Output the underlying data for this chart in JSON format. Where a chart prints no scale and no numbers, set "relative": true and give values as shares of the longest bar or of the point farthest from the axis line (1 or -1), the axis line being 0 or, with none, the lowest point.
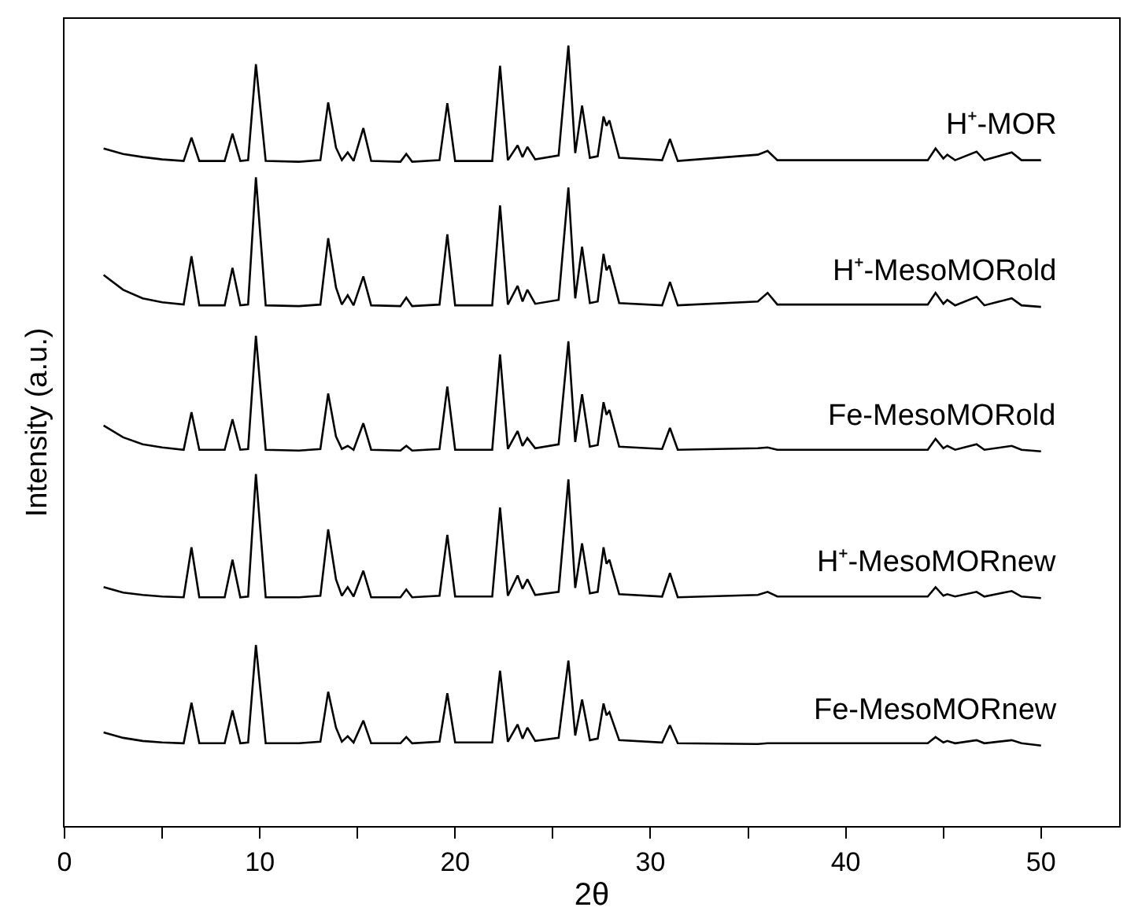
{
  "chart_data": {
    "type": "line",
    "relative": true,
    "xlabel": "2θ",
    "ylabel": "Intensity (a.u.)",
    "xlim": [
      0,
      54
    ],
    "xticks": [
      0,
      {
        "value": 5,
        "label": null
      },
      10,
      {
        "value": 15,
        "label": null
      },
      20,
      {
        "value": 25,
        "label": null
      },
      30,
      {
        "value": 35,
        "label": null
      },
      40,
      {
        "value": 45,
        "label": null
      },
      50
    ],
    "legend": false,
    "marker": "none",
    "line_style": "solid",
    "x": [
      2,
      3,
      4,
      5,
      6.1,
      6.5,
      6.9,
      8.2,
      8.6,
      9.0,
      9.4,
      9.8,
      10.3,
      12,
      13.1,
      13.5,
      13.9,
      14.2,
      14.5,
      14.8,
      15.3,
      15.7,
      17.2,
      17.5,
      17.8,
      19.2,
      19.6,
      20.0,
      21.9,
      22.3,
      22.7,
      23.2,
      23.45,
      23.7,
      24.1,
      25.3,
      25.8,
      26.15,
      26.5,
      26.9,
      27.3,
      27.6,
      27.75,
      27.9,
      28.4,
      30.6,
      31.0,
      31.4,
      35.5,
      36.0,
      36.5,
      44.2,
      44.6,
      45.0,
      45.2,
      45.6,
      46.7,
      47.1,
      48.5,
      49,
      50
    ],
    "series": [
      {
        "name": "H⁺-MOR",
        "color": "#000000",
        "values": [
          0.868,
          0.861,
          0.857,
          0.854,
          0.852,
          0.882,
          0.852,
          0.852,
          0.887,
          0.852,
          0.853,
          0.976,
          0.852,
          0.851,
          0.853,
          0.927,
          0.869,
          0.853,
          0.863,
          0.852,
          0.894,
          0.852,
          0.851,
          0.861,
          0.851,
          0.853,
          0.926,
          0.852,
          0.852,
          0.974,
          0.853,
          0.872,
          0.857,
          0.87,
          0.854,
          0.859,
          1.0,
          0.862,
          0.923,
          0.856,
          0.858,
          0.909,
          0.897,
          0.904,
          0.856,
          0.853,
          0.88,
          0.852,
          0.86,
          0.865,
          0.853,
          0.853,
          0.868,
          0.855,
          0.86,
          0.853,
          0.864,
          0.853,
          0.863,
          0.853,
          0.853
        ]
      },
      {
        "name": "H⁺-MesoMORold",
        "color": "#000000",
        "values": [
          0.706,
          0.687,
          0.676,
          0.671,
          0.668,
          0.73,
          0.667,
          0.667,
          0.715,
          0.667,
          0.668,
          0.831,
          0.667,
          0.666,
          0.668,
          0.753,
          0.69,
          0.668,
          0.68,
          0.667,
          0.704,
          0.667,
          0.666,
          0.677,
          0.666,
          0.668,
          0.758,
          0.667,
          0.667,
          0.795,
          0.668,
          0.692,
          0.672,
          0.687,
          0.669,
          0.674,
          0.818,
          0.676,
          0.742,
          0.67,
          0.672,
          0.733,
          0.712,
          0.718,
          0.67,
          0.667,
          0.697,
          0.667,
          0.672,
          0.683,
          0.668,
          0.668,
          0.683,
          0.669,
          0.674,
          0.667,
          0.678,
          0.667,
          0.676,
          0.667,
          0.665
        ]
      },
      {
        "name": "Fe-MesoMORold",
        "color": "#000000",
        "values": [
          0.513,
          0.498,
          0.489,
          0.485,
          0.482,
          0.53,
          0.482,
          0.482,
          0.521,
          0.482,
          0.483,
          0.628,
          0.482,
          0.481,
          0.483,
          0.554,
          0.499,
          0.483,
          0.487,
          0.482,
          0.516,
          0.482,
          0.481,
          0.487,
          0.481,
          0.483,
          0.563,
          0.482,
          0.482,
          0.604,
          0.483,
          0.506,
          0.487,
          0.497,
          0.484,
          0.489,
          0.621,
          0.492,
          0.553,
          0.486,
          0.488,
          0.543,
          0.527,
          0.533,
          0.486,
          0.483,
          0.51,
          0.482,
          0.484,
          0.485,
          0.482,
          0.482,
          0.496,
          0.484,
          0.487,
          0.482,
          0.489,
          0.482,
          0.487,
          0.482,
          0.48
        ]
      },
      {
        "name": "H⁺-MesoMORnew",
        "color": "#000000",
        "values": [
          0.306,
          0.299,
          0.296,
          0.294,
          0.293,
          0.357,
          0.293,
          0.293,
          0.341,
          0.293,
          0.294,
          0.451,
          0.293,
          0.293,
          0.295,
          0.38,
          0.316,
          0.295,
          0.306,
          0.294,
          0.327,
          0.293,
          0.293,
          0.303,
          0.293,
          0.295,
          0.373,
          0.294,
          0.294,
          0.408,
          0.295,
          0.321,
          0.304,
          0.316,
          0.296,
          0.3,
          0.444,
          0.305,
          0.362,
          0.298,
          0.3,
          0.357,
          0.336,
          0.341,
          0.297,
          0.294,
          0.324,
          0.293,
          0.296,
          0.3,
          0.294,
          0.294,
          0.306,
          0.295,
          0.297,
          0.294,
          0.3,
          0.294,
          0.301,
          0.294,
          0.292
        ]
      },
      {
        "name": "Fe-MesoMORnew",
        "color": "#000000",
        "values": [
          0.12,
          0.113,
          0.109,
          0.107,
          0.106,
          0.158,
          0.106,
          0.106,
          0.148,
          0.106,
          0.107,
          0.232,
          0.106,
          0.106,
          0.108,
          0.172,
          0.126,
          0.108,
          0.115,
          0.107,
          0.135,
          0.106,
          0.106,
          0.114,
          0.106,
          0.108,
          0.17,
          0.107,
          0.107,
          0.199,
          0.108,
          0.13,
          0.112,
          0.126,
          0.109,
          0.113,
          0.212,
          0.116,
          0.162,
          0.11,
          0.112,
          0.157,
          0.142,
          0.146,
          0.11,
          0.107,
          0.129,
          0.106,
          0.105,
          0.106,
          0.106,
          0.106,
          0.114,
          0.107,
          0.109,
          0.106,
          0.11,
          0.106,
          0.11,
          0.106,
          0.103
        ]
      }
    ]
  }
}
